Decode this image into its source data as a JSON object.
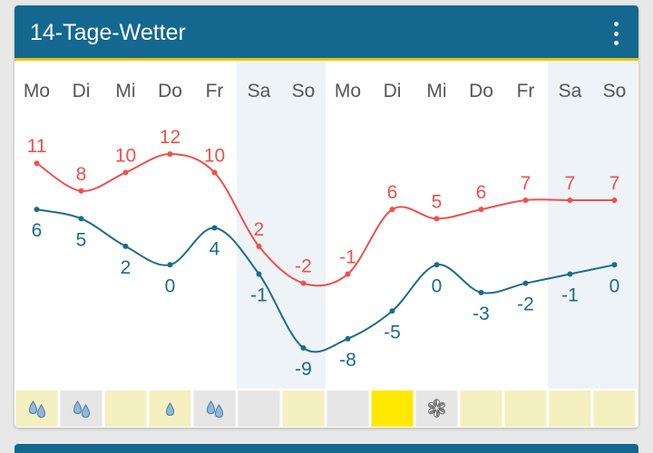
{
  "header": {
    "title": "14-Tage-Wetter",
    "menu_icon": "more-vert-icon"
  },
  "days": [
    "Mo",
    "Di",
    "Mi",
    "Do",
    "Fr",
    "Sa",
    "So",
    "Mo",
    "Di",
    "Mi",
    "Do",
    "Fr",
    "Sa",
    "So"
  ],
  "weekend_indices": [
    5,
    6,
    12,
    13
  ],
  "colors": {
    "header_bg": "#14688f",
    "accent": "#e8c400",
    "max_line": "#f0504a",
    "min_line": "#1d6a8f",
    "weekend_bg": "#eef3f7"
  },
  "chart_data": {
    "type": "line",
    "categories": [
      "Mo",
      "Di",
      "Mi",
      "Do",
      "Fr",
      "Sa",
      "So",
      "Mo",
      "Di",
      "Mi",
      "Do",
      "Fr",
      "Sa",
      "So"
    ],
    "series": [
      {
        "values": [
          11,
          8,
          10,
          12,
          10,
          2,
          -2,
          -1,
          6,
          5,
          6,
          7,
          7,
          7
        ]
      },
      {
        "values": [
          6,
          5,
          2,
          0,
          4,
          -1,
          -9,
          -8,
          -5,
          0,
          -3,
          -2,
          -1,
          0
        ]
      }
    ]
  },
  "precipitation": [
    {
      "type": "rain-heavy",
      "color": "#f5f0c0"
    },
    {
      "type": "rain-heavy",
      "color": "#e6e6e6"
    },
    {
      "type": "none",
      "color": "#f5f0c0"
    },
    {
      "type": "rain-light",
      "color": "#f5f0c0"
    },
    {
      "type": "rain-heavy",
      "color": "#e6e6e6"
    },
    {
      "type": "none",
      "color": "#e6e6e6"
    },
    {
      "type": "none",
      "color": "#f5f0c0"
    },
    {
      "type": "none",
      "color": "#e6e6e6"
    },
    {
      "type": "none",
      "color": "#ffe900"
    },
    {
      "type": "snow",
      "color": "#e6e6e6"
    },
    {
      "type": "none",
      "color": "#f5f0c0"
    },
    {
      "type": "none",
      "color": "#f5f0c0"
    },
    {
      "type": "none",
      "color": "#f5f0c0"
    },
    {
      "type": "none",
      "color": "#f5f0c0"
    }
  ]
}
